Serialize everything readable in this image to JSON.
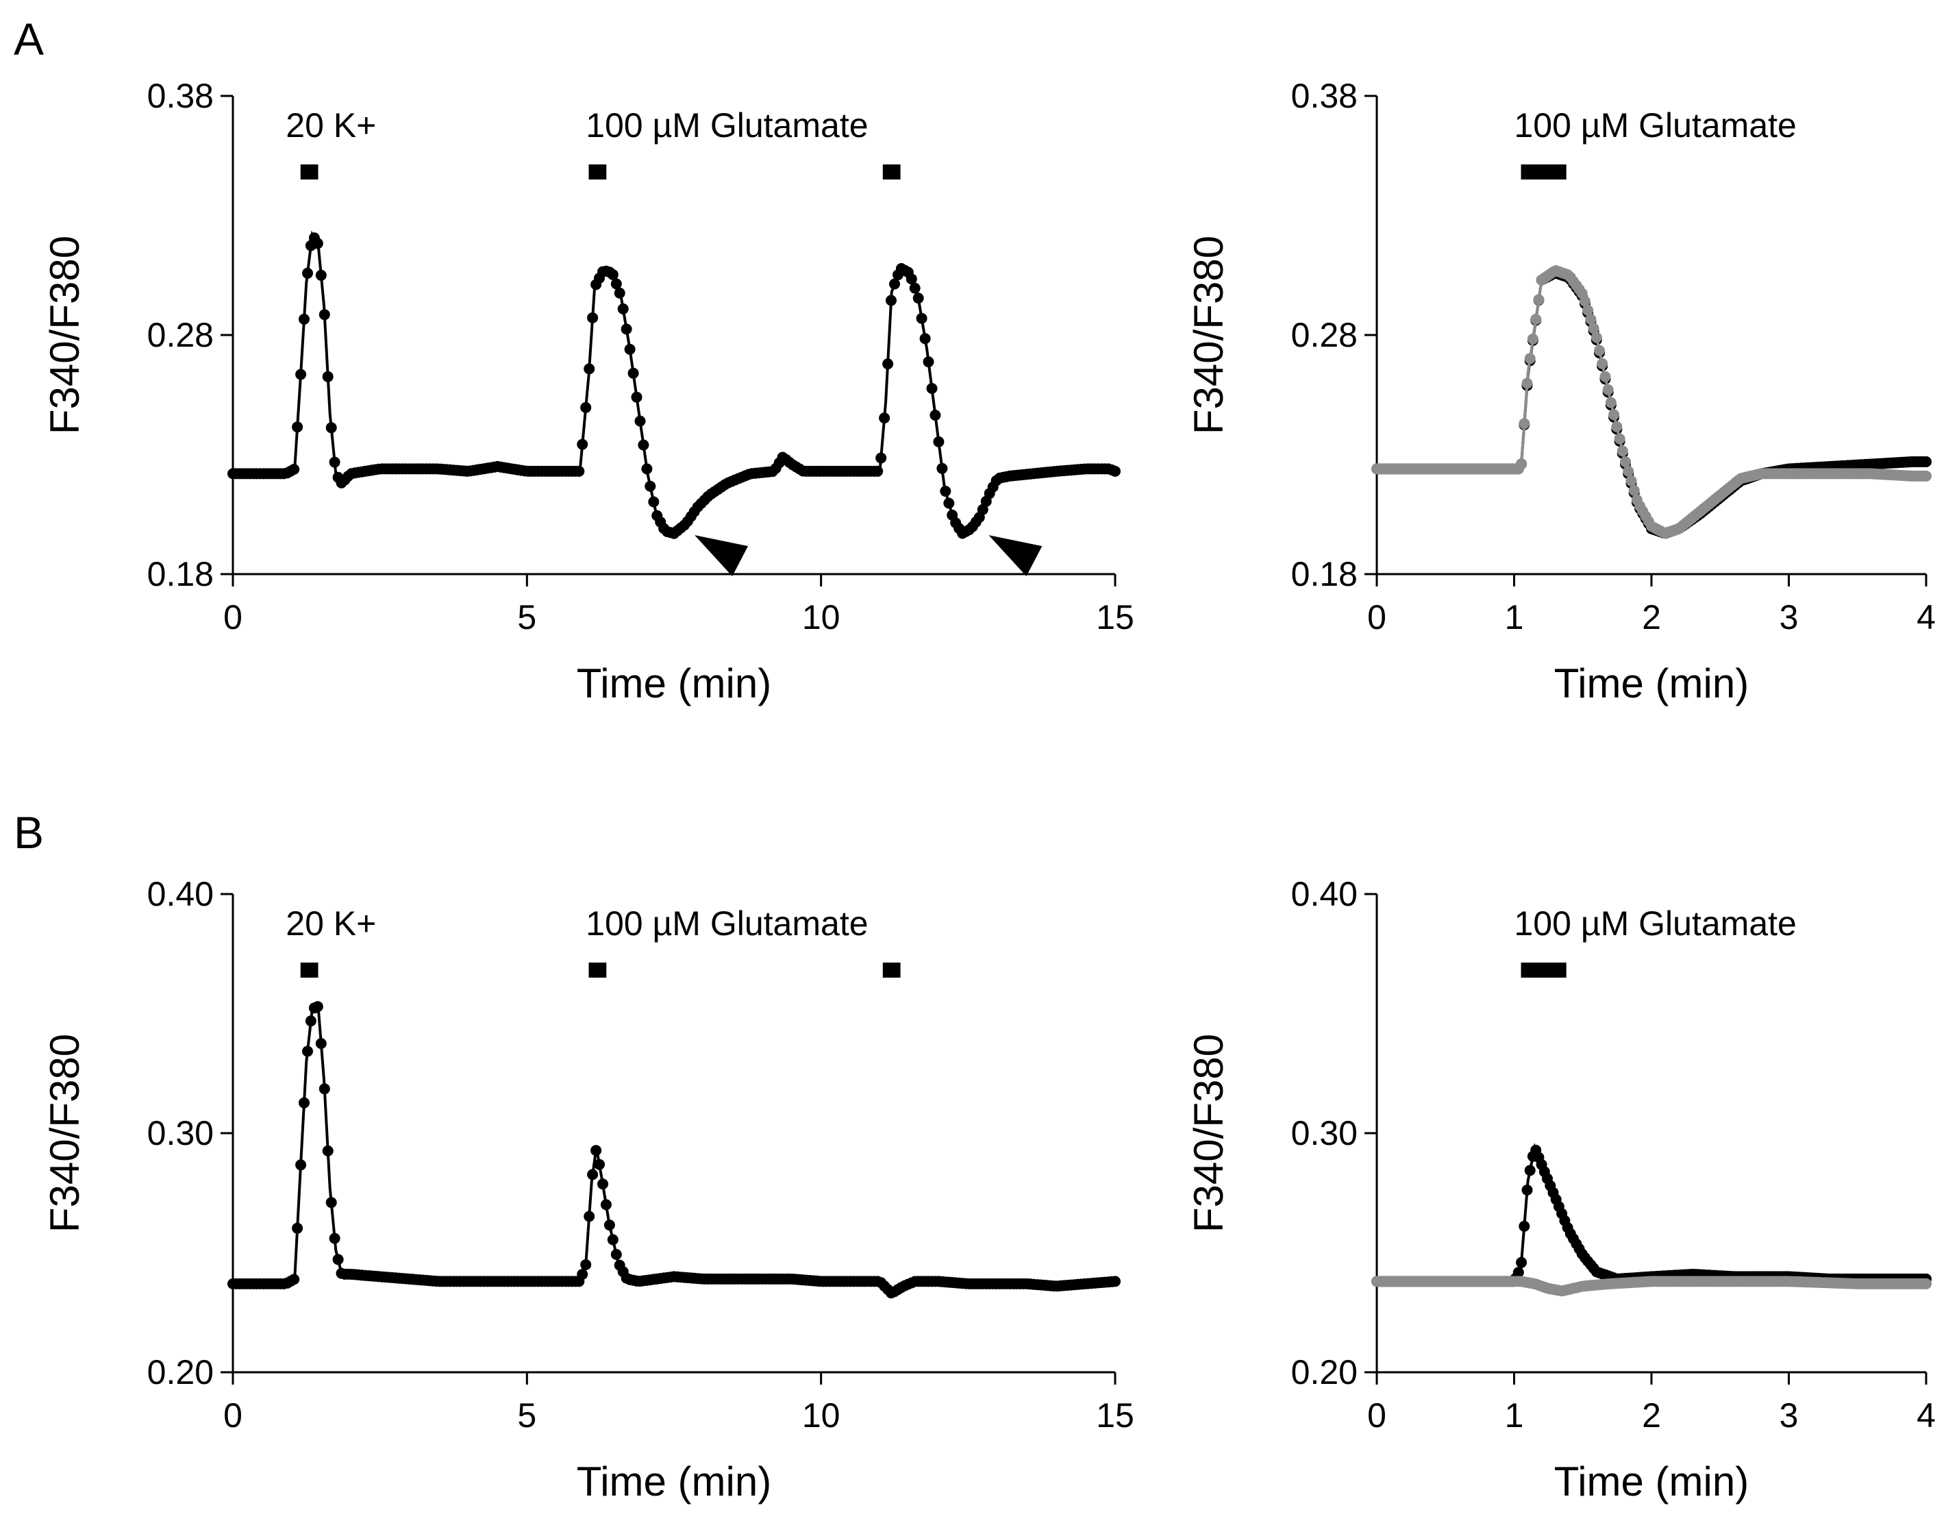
{
  "panel_labels": [
    "A",
    "B"
  ],
  "chart_data": [
    {
      "id": "A-left",
      "type": "line",
      "panel": "A",
      "xlabel": "Time (min)",
      "ylabel": "F340/F380",
      "xlim": [
        0,
        15
      ],
      "ylim": [
        0.18,
        0.38
      ],
      "xticks": [
        0,
        5,
        10,
        15
      ],
      "xtick_labels": [
        "0",
        "5",
        "10",
        "15"
      ],
      "yticks": [
        0.18,
        0.28,
        0.38
      ],
      "ytick_labels": [
        "0.18",
        "0.28",
        "0.38"
      ],
      "annotations": [
        {
          "text": "20 K+",
          "x": 0.9
        },
        {
          "text": "100 µM Glutamate",
          "x": 6.0
        }
      ],
      "stimulus_bars": [
        [
          1.15,
          1.45
        ],
        [
          6.05,
          6.35
        ],
        [
          11.05,
          11.35
        ]
      ],
      "arrowheads": [
        [
          7.85,
          0.194
        ],
        [
          12.85,
          0.194
        ]
      ],
      "series": [
        {
          "name": "trace",
          "color": "#000000",
          "points": [
            [
              0,
              0.222
            ],
            [
              0.3,
              0.222
            ],
            [
              0.6,
              0.222
            ],
            [
              0.9,
              0.222
            ],
            [
              1.05,
              0.224
            ],
            [
              1.15,
              0.262
            ],
            [
              1.25,
              0.302
            ],
            [
              1.35,
              0.322
            ],
            [
              1.45,
              0.318
            ],
            [
              1.55,
              0.292
            ],
            [
              1.65,
              0.247
            ],
            [
              1.75,
              0.222
            ],
            [
              1.85,
              0.218
            ],
            [
              2.0,
              0.222
            ],
            [
              2.5,
              0.224
            ],
            [
              3.0,
              0.224
            ],
            [
              3.5,
              0.224
            ],
            [
              4.0,
              0.223
            ],
            [
              4.5,
              0.225
            ],
            [
              5.0,
              0.223
            ],
            [
              5.5,
              0.223
            ],
            [
              5.9,
              0.223
            ],
            [
              6.05,
              0.263
            ],
            [
              6.15,
              0.3
            ],
            [
              6.3,
              0.307
            ],
            [
              6.45,
              0.306
            ],
            [
              6.6,
              0.296
            ],
            [
              6.75,
              0.274
            ],
            [
              6.9,
              0.248
            ],
            [
              7.05,
              0.222
            ],
            [
              7.2,
              0.205
            ],
            [
              7.35,
              0.198
            ],
            [
              7.5,
              0.197
            ],
            [
              7.7,
              0.201
            ],
            [
              7.9,
              0.208
            ],
            [
              8.1,
              0.213
            ],
            [
              8.4,
              0.218
            ],
            [
              8.8,
              0.222
            ],
            [
              9.2,
              0.223
            ],
            [
              9.35,
              0.229
            ],
            [
              9.5,
              0.226
            ],
            [
              9.7,
              0.223
            ],
            [
              10.2,
              0.223
            ],
            [
              10.6,
              0.223
            ],
            [
              11.0,
              0.223
            ],
            [
              11.1,
              0.252
            ],
            [
              11.2,
              0.298
            ],
            [
              11.35,
              0.308
            ],
            [
              11.5,
              0.306
            ],
            [
              11.65,
              0.296
            ],
            [
              11.8,
              0.274
            ],
            [
              11.95,
              0.245
            ],
            [
              12.1,
              0.216
            ],
            [
              12.25,
              0.203
            ],
            [
              12.4,
              0.197
            ],
            [
              12.55,
              0.199
            ],
            [
              12.7,
              0.204
            ],
            [
              12.85,
              0.213
            ],
            [
              13.0,
              0.22
            ],
            [
              13.2,
              0.221
            ],
            [
              13.6,
              0.222
            ],
            [
              14.0,
              0.223
            ],
            [
              14.5,
              0.224
            ],
            [
              14.9,
              0.224
            ],
            [
              15.0,
              0.223
            ]
          ]
        }
      ]
    },
    {
      "id": "A-right",
      "type": "line",
      "panel": "A",
      "xlabel": "Time (min)",
      "ylabel": "F340/F380",
      "xlim": [
        0,
        4
      ],
      "ylim": [
        0.18,
        0.38
      ],
      "xticks": [
        0,
        1,
        2,
        3,
        4
      ],
      "xtick_labels": [
        "0",
        "1",
        "2",
        "3",
        "4"
      ],
      "yticks": [
        0.18,
        0.28,
        0.38
      ],
      "ytick_labels": [
        "0.18",
        "0.28",
        "0.38"
      ],
      "annotations": [
        {
          "text": "100 µM Glutamate",
          "x": 1.0
        }
      ],
      "stimulus_bars": [
        [
          1.05,
          1.38
        ]
      ],
      "arrowheads": [],
      "series": [
        {
          "name": "response 1",
          "color": "#000000",
          "points": [
            [
              0,
              0.224
            ],
            [
              0.3,
              0.224
            ],
            [
              0.6,
              0.224
            ],
            [
              0.9,
              0.224
            ],
            [
              1.05,
              0.224
            ],
            [
              1.1,
              0.263
            ],
            [
              1.2,
              0.303
            ],
            [
              1.3,
              0.306
            ],
            [
              1.4,
              0.304
            ],
            [
              1.5,
              0.296
            ],
            [
              1.6,
              0.278
            ],
            [
              1.7,
              0.252
            ],
            [
              1.8,
              0.228
            ],
            [
              1.9,
              0.209
            ],
            [
              2.0,
              0.199
            ],
            [
              2.1,
              0.197
            ],
            [
              2.2,
              0.199
            ],
            [
              2.35,
              0.205
            ],
            [
              2.5,
              0.212
            ],
            [
              2.65,
              0.219
            ],
            [
              2.8,
              0.222
            ],
            [
              3.0,
              0.224
            ],
            [
              3.3,
              0.225
            ],
            [
              3.6,
              0.226
            ],
            [
              3.9,
              0.227
            ],
            [
              4.0,
              0.227
            ]
          ]
        },
        {
          "name": "response 2",
          "color": "#8c8c8c",
          "points": [
            [
              0,
              0.224
            ],
            [
              0.3,
              0.224
            ],
            [
              0.6,
              0.224
            ],
            [
              0.9,
              0.224
            ],
            [
              1.05,
              0.224
            ],
            [
              1.1,
              0.264
            ],
            [
              1.2,
              0.303
            ],
            [
              1.3,
              0.307
            ],
            [
              1.4,
              0.305
            ],
            [
              1.5,
              0.297
            ],
            [
              1.6,
              0.279
            ],
            [
              1.7,
              0.253
            ],
            [
              1.8,
              0.229
            ],
            [
              1.9,
              0.21
            ],
            [
              2.0,
              0.2
            ],
            [
              2.1,
              0.197
            ],
            [
              2.2,
              0.199
            ],
            [
              2.35,
              0.206
            ],
            [
              2.5,
              0.213
            ],
            [
              2.65,
              0.22
            ],
            [
              2.8,
              0.222
            ],
            [
              3.0,
              0.222
            ],
            [
              3.3,
              0.222
            ],
            [
              3.6,
              0.222
            ],
            [
              3.9,
              0.221
            ],
            [
              4.0,
              0.221
            ]
          ]
        }
      ]
    },
    {
      "id": "B-left",
      "type": "line",
      "panel": "B",
      "xlabel": "Time (min)",
      "ylabel": "F340/F380",
      "xlim": [
        0,
        15
      ],
      "ylim": [
        0.2,
        0.4
      ],
      "xticks": [
        0,
        5,
        10,
        15
      ],
      "xtick_labels": [
        "0",
        "5",
        "10",
        "15"
      ],
      "yticks": [
        0.2,
        0.3,
        0.4
      ],
      "ytick_labels": [
        "0.20",
        "0.30",
        "0.40"
      ],
      "annotations": [
        {
          "text": "20 K+",
          "x": 0.9
        },
        {
          "text": "100 µM Glutamate",
          "x": 6.0
        }
      ],
      "stimulus_bars": [
        [
          1.15,
          1.45
        ],
        [
          6.05,
          6.35
        ],
        [
          11.05,
          11.35
        ]
      ],
      "arrowheads": [],
      "series": [
        {
          "name": "trace",
          "color": "#000000",
          "points": [
            [
              0,
              0.237
            ],
            [
              0.3,
              0.237
            ],
            [
              0.6,
              0.237
            ],
            [
              0.9,
              0.237
            ],
            [
              1.05,
              0.239
            ],
            [
              1.15,
              0.285
            ],
            [
              1.25,
              0.33
            ],
            [
              1.35,
              0.352
            ],
            [
              1.45,
              0.353
            ],
            [
              1.55,
              0.322
            ],
            [
              1.65,
              0.277
            ],
            [
              1.75,
              0.251
            ],
            [
              1.85,
              0.241
            ],
            [
              2.0,
              0.241
            ],
            [
              2.5,
              0.24
            ],
            [
              3.0,
              0.239
            ],
            [
              3.5,
              0.238
            ],
            [
              4.0,
              0.238
            ],
            [
              4.5,
              0.238
            ],
            [
              5.0,
              0.238
            ],
            [
              5.5,
              0.238
            ],
            [
              5.9,
              0.238
            ],
            [
              6.0,
              0.245
            ],
            [
              6.1,
              0.28
            ],
            [
              6.18,
              0.294
            ],
            [
              6.28,
              0.28
            ],
            [
              6.4,
              0.262
            ],
            [
              6.55,
              0.246
            ],
            [
              6.7,
              0.239
            ],
            [
              6.9,
              0.238
            ],
            [
              7.5,
              0.24
            ],
            [
              8.0,
              0.239
            ],
            [
              8.5,
              0.239
            ],
            [
              9.0,
              0.239
            ],
            [
              9.5,
              0.239
            ],
            [
              10.0,
              0.238
            ],
            [
              10.5,
              0.238
            ],
            [
              11.0,
              0.238
            ],
            [
              11.2,
              0.233
            ],
            [
              11.4,
              0.236
            ],
            [
              11.6,
              0.238
            ],
            [
              12.0,
              0.238
            ],
            [
              12.5,
              0.237
            ],
            [
              13.0,
              0.237
            ],
            [
              13.5,
              0.237
            ],
            [
              14.0,
              0.236
            ],
            [
              14.5,
              0.237
            ],
            [
              15.0,
              0.238
            ]
          ]
        }
      ]
    },
    {
      "id": "B-right",
      "type": "line",
      "panel": "B",
      "xlabel": "Time (min)",
      "ylabel": "F340/F380",
      "xlim": [
        0,
        4
      ],
      "ylim": [
        0.2,
        0.4
      ],
      "xticks": [
        0,
        1,
        2,
        3,
        4
      ],
      "xtick_labels": [
        "0",
        "1",
        "2",
        "3",
        "4"
      ],
      "yticks": [
        0.2,
        0.3,
        0.4
      ],
      "ytick_labels": [
        "0.20",
        "0.30",
        "0.40"
      ],
      "annotations": [
        {
          "text": "100 µM Glutamate",
          "x": 1.0
        }
      ],
      "stimulus_bars": [
        [
          1.05,
          1.38
        ]
      ],
      "arrowheads": [],
      "series": [
        {
          "name": "response 1",
          "color": "#000000",
          "points": [
            [
              0,
              0.238
            ],
            [
              0.3,
              0.238
            ],
            [
              0.6,
              0.238
            ],
            [
              0.9,
              0.238
            ],
            [
              1.0,
              0.238
            ],
            [
              1.05,
              0.244
            ],
            [
              1.1,
              0.28
            ],
            [
              1.15,
              0.294
            ],
            [
              1.22,
              0.284
            ],
            [
              1.3,
              0.273
            ],
            [
              1.4,
              0.259
            ],
            [
              1.5,
              0.249
            ],
            [
              1.6,
              0.242
            ],
            [
              1.75,
              0.239
            ],
            [
              2.0,
              0.24
            ],
            [
              2.3,
              0.241
            ],
            [
              2.6,
              0.24
            ],
            [
              3.0,
              0.24
            ],
            [
              3.3,
              0.239
            ],
            [
              3.6,
              0.239
            ],
            [
              4.0,
              0.239
            ]
          ]
        },
        {
          "name": "response 2",
          "color": "#8c8c8c",
          "points": [
            [
              0,
              0.238
            ],
            [
              0.3,
              0.238
            ],
            [
              0.6,
              0.238
            ],
            [
              0.9,
              0.238
            ],
            [
              1.05,
              0.238
            ],
            [
              1.15,
              0.237
            ],
            [
              1.25,
              0.235
            ],
            [
              1.35,
              0.234
            ],
            [
              1.5,
              0.236
            ],
            [
              1.7,
              0.237
            ],
            [
              2.0,
              0.238
            ],
            [
              2.5,
              0.238
            ],
            [
              3.0,
              0.238
            ],
            [
              3.5,
              0.237
            ],
            [
              4.0,
              0.237
            ]
          ]
        }
      ]
    }
  ]
}
